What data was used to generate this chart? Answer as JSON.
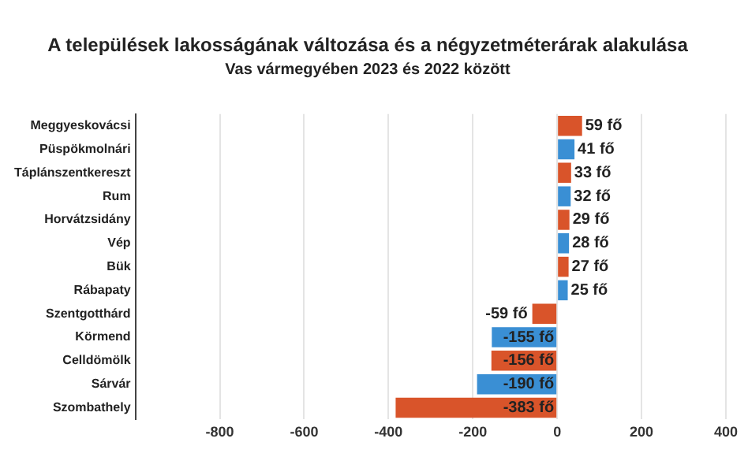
{
  "chart_data": {
    "type": "bar",
    "orientation": "horizontal",
    "title": "A települések lakosságának változása és a négyzetméterárak alakulása",
    "subtitle": "Vas vármegyében 2023 és 2022 között",
    "categories": [
      "Meggyeskovácsi",
      "Püspökmolnári",
      "Táplánszentkereszt",
      "Rum",
      "Horvátzsidány",
      "Vép",
      "Bük",
      "Rábapaty",
      "Szentgotthárd",
      "Körmend",
      "Celldömölk",
      "Sárvár",
      "Szombathely"
    ],
    "values": [
      59,
      41,
      33,
      32,
      29,
      28,
      27,
      25,
      -59,
      -155,
      -156,
      -190,
      -383
    ],
    "colors": [
      "#d9542a",
      "#3a8fd4",
      "#d9542a",
      "#3a8fd4",
      "#d9542a",
      "#3a8fd4",
      "#d9542a",
      "#3a8fd4",
      "#d9542a",
      "#3a8fd4",
      "#d9542a",
      "#3a8fd4",
      "#d9542a"
    ],
    "value_labels": [
      "59 fő",
      "41 fő",
      "33 fő",
      "32 fő",
      "29 fő",
      "28 fő",
      "27 fő",
      "25 fő",
      "-59 fő",
      "-155 fő",
      "-156 fő",
      "-190 fő",
      "-383 fő"
    ],
    "xlim": [
      -1000,
      400
    ],
    "xticks": [
      -800,
      -600,
      -400,
      -200,
      0,
      200,
      400
    ],
    "grid": "x"
  }
}
